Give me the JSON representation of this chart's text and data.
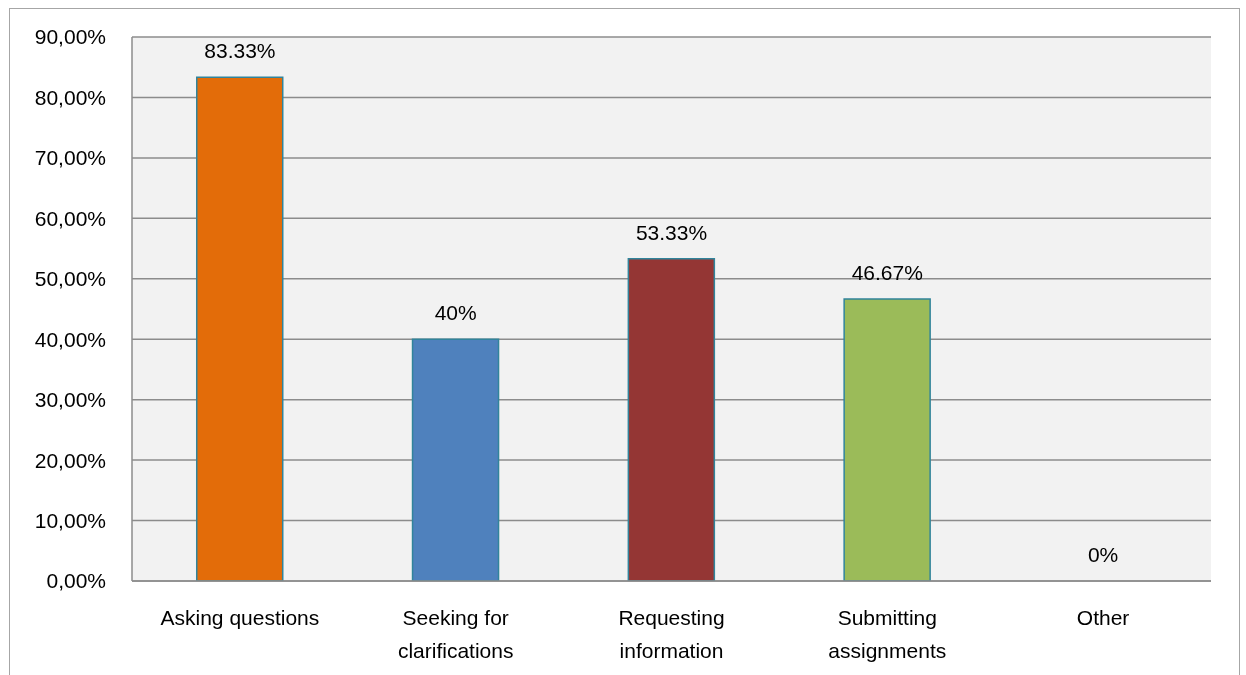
{
  "chart_data": {
    "type": "bar",
    "categories": [
      "Asking questions",
      "Seeking for clarifications",
      "Requesting information",
      "Submitting assignments",
      "Other"
    ],
    "values": [
      83.33,
      40,
      53.33,
      46.67,
      0
    ],
    "colors": [
      "#e36c09",
      "#4f81bd",
      "#943634",
      "#9bbb59",
      "#4bacc6"
    ],
    "value_labels": [
      "83.33%",
      "40%",
      "53.33%",
      "46.67%",
      "0%"
    ],
    "ylim": [
      0,
      90
    ],
    "yticks": [
      {
        "value": 0,
        "label": "0,00%"
      },
      {
        "value": 10,
        "label": "10,00%"
      },
      {
        "value": 20,
        "label": "20,00%"
      },
      {
        "value": 30,
        "label": "30,00%"
      },
      {
        "value": 40,
        "label": "40,00%"
      },
      {
        "value": 50,
        "label": "50,00%"
      },
      {
        "value": 60,
        "label": "60,00%"
      },
      {
        "value": 70,
        "label": "70,00%"
      },
      {
        "value": 80,
        "label": "80,00%"
      },
      {
        "value": 90,
        "label": "90,00%"
      }
    ],
    "grid": "y"
  }
}
